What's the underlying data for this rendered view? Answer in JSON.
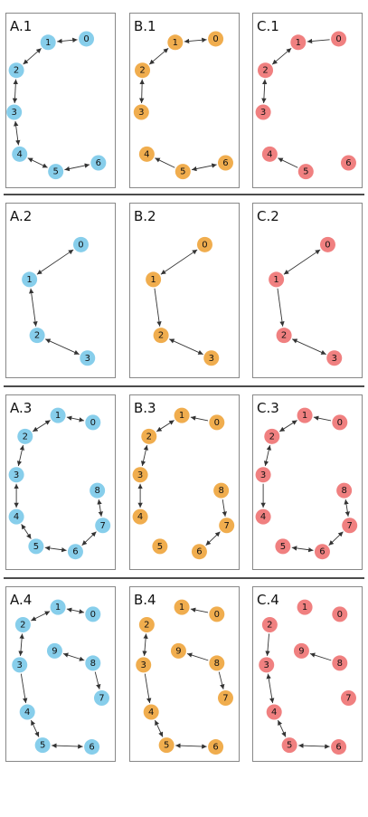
{
  "colors": {
    "A": "#87ceeb",
    "B": "#f0ad4e",
    "C": "#f08080"
  },
  "columns": [
    "A",
    "B",
    "C"
  ],
  "rows": [
    {
      "id": "1",
      "panels": [
        {
          "label": "A.1",
          "col": "A",
          "nodes": [
            [
              "0",
              0.74,
              0.15
            ],
            [
              "1",
              0.39,
              0.17
            ],
            [
              "2",
              0.1,
              0.33
            ],
            [
              "3",
              0.08,
              0.57
            ],
            [
              "4",
              0.13,
              0.81
            ],
            [
              "5",
              0.46,
              0.91
            ],
            [
              "6",
              0.85,
              0.86
            ]
          ],
          "edges": [
            [
              "1",
              "0",
              "both"
            ],
            [
              "2",
              "1",
              "both"
            ],
            [
              "2",
              "3",
              "both"
            ],
            [
              "3",
              "4",
              "both"
            ],
            [
              "4",
              "5",
              "both"
            ],
            [
              "5",
              "6",
              "both"
            ]
          ]
        },
        {
          "label": "B.1",
          "col": "B",
          "nodes": [
            [
              "0",
              0.79,
              0.15
            ],
            [
              "1",
              0.42,
              0.17
            ],
            [
              "2",
              0.12,
              0.33
            ],
            [
              "3",
              0.11,
              0.57
            ],
            [
              "4",
              0.16,
              0.81
            ],
            [
              "5",
              0.49,
              0.91
            ],
            [
              "6",
              0.88,
              0.86
            ]
          ],
          "edges": [
            [
              "1",
              "0",
              "both"
            ],
            [
              "2",
              "1",
              "both"
            ],
            [
              "2",
              "3",
              "both"
            ],
            [
              "5",
              "4",
              "fwd"
            ],
            [
              "5",
              "6",
              "both"
            ]
          ]
        },
        {
          "label": "C.1",
          "col": "C",
          "nodes": [
            [
              "0",
              0.79,
              0.15
            ],
            [
              "1",
              0.42,
              0.17
            ],
            [
              "2",
              0.12,
              0.33
            ],
            [
              "3",
              0.1,
              0.57
            ],
            [
              "4",
              0.16,
              0.81
            ],
            [
              "5",
              0.49,
              0.91
            ],
            [
              "6",
              0.88,
              0.86
            ]
          ],
          "edges": [
            [
              "0",
              "1",
              "fwd"
            ],
            [
              "2",
              "1",
              "both"
            ],
            [
              "2",
              "3",
              "both"
            ],
            [
              "5",
              "4",
              "fwd"
            ]
          ]
        }
      ]
    },
    {
      "id": "2",
      "panels": [
        {
          "label": "A.2",
          "col": "A",
          "nodes": [
            [
              "0",
              0.69,
              0.24
            ],
            [
              "1",
              0.22,
              0.44
            ],
            [
              "2",
              0.29,
              0.76
            ],
            [
              "3",
              0.75,
              0.89
            ]
          ],
          "edges": [
            [
              "0",
              "1",
              "both"
            ],
            [
              "1",
              "2",
              "both"
            ],
            [
              "2",
              "3",
              "both"
            ]
          ]
        },
        {
          "label": "B.2",
          "col": "B",
          "nodes": [
            [
              "0",
              0.69,
              0.24
            ],
            [
              "1",
              0.22,
              0.44
            ],
            [
              "2",
              0.29,
              0.76
            ],
            [
              "3",
              0.75,
              0.89
            ]
          ],
          "edges": [
            [
              "0",
              "1",
              "both"
            ],
            [
              "1",
              "2",
              "fwd"
            ],
            [
              "2",
              "3",
              "both"
            ]
          ]
        },
        {
          "label": "C.2",
          "col": "C",
          "nodes": [
            [
              "0",
              0.69,
              0.24
            ],
            [
              "1",
              0.22,
              0.44
            ],
            [
              "2",
              0.29,
              0.76
            ],
            [
              "3",
              0.75,
              0.89
            ]
          ],
          "edges": [
            [
              "0",
              "1",
              "both"
            ],
            [
              "1",
              "2",
              "fwd"
            ],
            [
              "2",
              "3",
              "both"
            ]
          ]
        }
      ]
    },
    {
      "id": "3",
      "panels": [
        {
          "label": "A.3",
          "col": "A",
          "nodes": [
            [
              "0",
              0.8,
              0.16
            ],
            [
              "1",
              0.48,
              0.12
            ],
            [
              "2",
              0.18,
              0.24
            ],
            [
              "3",
              0.1,
              0.46
            ],
            [
              "4",
              0.1,
              0.7
            ],
            [
              "5",
              0.28,
              0.87
            ],
            [
              "6",
              0.64,
              0.9
            ],
            [
              "7",
              0.89,
              0.75
            ],
            [
              "8",
              0.84,
              0.55
            ]
          ],
          "edges": [
            [
              "0",
              "1",
              "both"
            ],
            [
              "1",
              "2",
              "both"
            ],
            [
              "2",
              "3",
              "both"
            ],
            [
              "3",
              "4",
              "both"
            ],
            [
              "4",
              "5",
              "both"
            ],
            [
              "5",
              "6",
              "both"
            ],
            [
              "6",
              "7",
              "both"
            ],
            [
              "7",
              "8",
              "both"
            ]
          ]
        },
        {
          "label": "B.3",
          "col": "B",
          "nodes": [
            [
              "0",
              0.8,
              0.16
            ],
            [
              "1",
              0.48,
              0.12
            ],
            [
              "2",
              0.18,
              0.24
            ],
            [
              "3",
              0.1,
              0.46
            ],
            [
              "4",
              0.1,
              0.7
            ],
            [
              "5",
              0.28,
              0.87
            ],
            [
              "6",
              0.64,
              0.9
            ],
            [
              "7",
              0.89,
              0.75
            ],
            [
              "8",
              0.84,
              0.55
            ]
          ],
          "edges": [
            [
              "0",
              "1",
              "fwd"
            ],
            [
              "1",
              "2",
              "both"
            ],
            [
              "2",
              "3",
              "both"
            ],
            [
              "3",
              "4",
              "both"
            ],
            [
              "7",
              "6",
              "both"
            ],
            [
              "8",
              "7",
              "fwd"
            ]
          ]
        },
        {
          "label": "C.3",
          "col": "C",
          "nodes": [
            [
              "0",
              0.8,
              0.16
            ],
            [
              "1",
              0.48,
              0.12
            ],
            [
              "2",
              0.18,
              0.24
            ],
            [
              "3",
              0.1,
              0.46
            ],
            [
              "4",
              0.1,
              0.7
            ],
            [
              "5",
              0.28,
              0.87
            ],
            [
              "6",
              0.64,
              0.9
            ],
            [
              "7",
              0.89,
              0.75
            ],
            [
              "8",
              0.84,
              0.55
            ]
          ],
          "edges": [
            [
              "0",
              "1",
              "fwd"
            ],
            [
              "1",
              "2",
              "both"
            ],
            [
              "2",
              "3",
              "both"
            ],
            [
              "3",
              "4",
              "fwd"
            ],
            [
              "5",
              "6",
              "both"
            ],
            [
              "6",
              "7",
              "both"
            ],
            [
              "7",
              "8",
              "both"
            ]
          ]
        }
      ]
    },
    {
      "id": "4",
      "panels": [
        {
          "label": "A.4",
          "col": "A",
          "nodes": [
            [
              "0",
              0.8,
              0.16
            ],
            [
              "1",
              0.48,
              0.12
            ],
            [
              "2",
              0.16,
              0.22
            ],
            [
              "3",
              0.13,
              0.45
            ],
            [
              "4",
              0.2,
              0.72
            ],
            [
              "5",
              0.34,
              0.91
            ],
            [
              "6",
              0.79,
              0.92
            ],
            [
              "7",
              0.88,
              0.64
            ],
            [
              "8",
              0.8,
              0.44
            ],
            [
              "9",
              0.45,
              0.37
            ]
          ],
          "edges": [
            [
              "0",
              "1",
              "both"
            ],
            [
              "1",
              "2",
              "both"
            ],
            [
              "2",
              "3",
              "both"
            ],
            [
              "3",
              "4",
              "fwd"
            ],
            [
              "4",
              "5",
              "both"
            ],
            [
              "5",
              "6",
              "both"
            ],
            [
              "9",
              "8",
              "both"
            ],
            [
              "8",
              "7",
              "fwd"
            ]
          ]
        },
        {
          "label": "B.4",
          "col": "B",
          "nodes": [
            [
              "0",
              0.8,
              0.16
            ],
            [
              "1",
              0.48,
              0.12
            ],
            [
              "2",
              0.16,
              0.22
            ],
            [
              "3",
              0.13,
              0.45
            ],
            [
              "4",
              0.2,
              0.72
            ],
            [
              "5",
              0.34,
              0.91
            ],
            [
              "6",
              0.79,
              0.92
            ],
            [
              "7",
              0.88,
              0.64
            ],
            [
              "8",
              0.8,
              0.44
            ],
            [
              "9",
              0.45,
              0.37
            ]
          ],
          "edges": [
            [
              "0",
              "1",
              "fwd"
            ],
            [
              "2",
              "3",
              "both"
            ],
            [
              "3",
              "4",
              "fwd"
            ],
            [
              "4",
              "5",
              "both"
            ],
            [
              "5",
              "6",
              "both"
            ],
            [
              "8",
              "9",
              "fwd"
            ],
            [
              "8",
              "7",
              "fwd"
            ]
          ]
        },
        {
          "label": "C.4",
          "col": "C",
          "nodes": [
            [
              "0",
              0.8,
              0.16
            ],
            [
              "1",
              0.48,
              0.12
            ],
            [
              "2",
              0.16,
              0.22
            ],
            [
              "3",
              0.13,
              0.45
            ],
            [
              "4",
              0.2,
              0.72
            ],
            [
              "5",
              0.34,
              0.91
            ],
            [
              "6",
              0.79,
              0.92
            ],
            [
              "7",
              0.88,
              0.64
            ],
            [
              "8",
              0.8,
              0.44
            ],
            [
              "9",
              0.45,
              0.37
            ]
          ],
          "edges": [
            [
              "2",
              "3",
              "fwd"
            ],
            [
              "3",
              "4",
              "both"
            ],
            [
              "4",
              "5",
              "both"
            ],
            [
              "5",
              "6",
              "both"
            ],
            [
              "8",
              "9",
              "fwd"
            ]
          ]
        }
      ]
    }
  ]
}
